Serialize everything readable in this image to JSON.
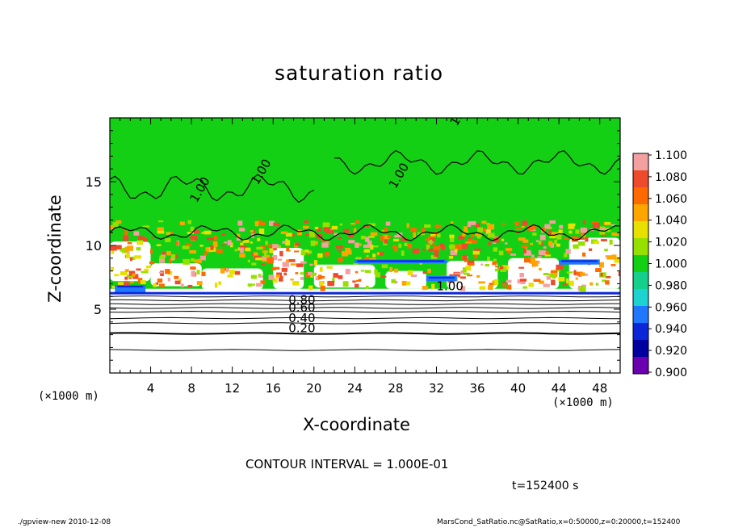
{
  "chart_data": {
    "type": "heatmap",
    "title": "saturation ratio",
    "xlabel": "X-coordinate",
    "ylabel": "Z-coordinate",
    "x_unit": "(×1000 m)",
    "x_unit_left": "(×1000 m)",
    "xlim": [
      0,
      50
    ],
    "ylim": [
      0,
      20
    ],
    "x_ticks": [
      4,
      8,
      12,
      16,
      20,
      24,
      28,
      32,
      36,
      40,
      44,
      48
    ],
    "y_ticks": [
      5,
      10,
      15
    ],
    "colorbar": {
      "levels": [
        "1.100",
        "1.080",
        "1.060",
        "1.040",
        "1.020",
        "1.000",
        "0.980",
        "0.960",
        "0.940",
        "0.920",
        "0.900"
      ],
      "colors": [
        "#f4a0a0",
        "#ee4a2c",
        "#ff6a00",
        "#ffa500",
        "#e8e000",
        "#96e000",
        "#14d014",
        "#14d08c",
        "#1ed2d2",
        "#1f78ff",
        "#0a28d8",
        "#0000a0",
        "#6a00b0"
      ]
    },
    "background_color": "#ffffff",
    "field_color": "#14d014",
    "contour_labels": [
      "1.00",
      "1.00",
      "1.00",
      "1.00",
      "1.00",
      "0.80",
      "0.60",
      "0.40",
      "0.20"
    ],
    "notes": "contours of saturation ratio; lower layer (z<6) shows nearly horizontal contour lines from 0.0 to 0.9"
  },
  "contour_interval": "CONTOUR INTERVAL = 1.000E-01",
  "time_label": "t=152400 s",
  "footer_left": "./gpview-new   2010-12-08",
  "footer_right": "MarsCond_SatRatio.nc@SatRatio,x=0:50000,z=0:20000,t=152400"
}
